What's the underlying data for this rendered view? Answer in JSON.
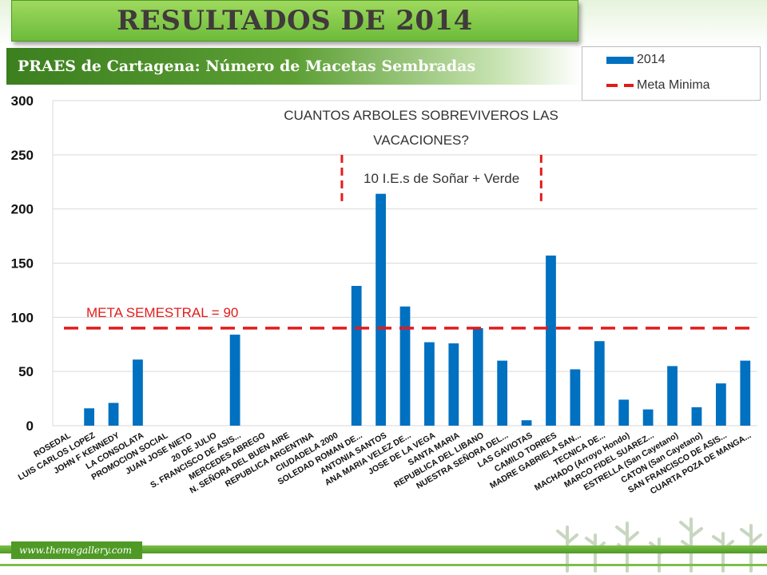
{
  "header": {
    "title": "RESULTADOS DE 2014",
    "subtitle": "PRAES de Cartagena: Número de Macetas Sembradas"
  },
  "footer": {
    "url_text": "www.themegallery.com"
  },
  "colors": {
    "bar": "#0070c0",
    "meta_line": "#e31b1b",
    "annotation_red": "#e31b1b",
    "annotation_text": "#333333",
    "brand_green": "#4e9a25"
  },
  "chart_data": {
    "type": "bar",
    "ylim": [
      0,
      300
    ],
    "yticks": [
      0,
      50,
      100,
      150,
      200,
      250,
      300
    ],
    "grid": true,
    "legend_position": "top-right",
    "categories": [
      "ROSEDAL",
      "LUIS CARLOS LOPEZ",
      "JOHN F KENNEDY",
      "LA CONSOLATA",
      "PROMOCION SOCIAL",
      "JUAN JOSE NIETO",
      "20 DE JULIO",
      "S. FRANCISCO DE ASIS...",
      "MERCEDES ABREGO",
      "N. SEÑORA DEL BUEN AIRE",
      "REPUBLICA ARGENTINA",
      "CIUDADELA 2000",
      "SOLEDAD ROMAN DE...",
      "ANTONIA SANTOS",
      "ANA MARIA VELEZ DE...",
      "JOSE DE LA VEGA",
      "SANTA MARIA",
      "REPUBLICA DEL LIBANO",
      "NUESTRA SEÑORA DEL...",
      "LAS GAVIOTAS",
      "CAMILO TORRES",
      "MADRE GABRIELA SAN...",
      "TECNICA DE...",
      "MACHADO (Arroyo Hondo)",
      "MARCO FIDEL SUAREZ...",
      "ESTRELLA (San Cayetano)",
      "CATON (San Cayetano)",
      "SAN FRANCISCO DE ASIS...",
      "CUARTA POZA DE MANGA..."
    ],
    "series": [
      {
        "name": "2014",
        "values": [
          0,
          16,
          21,
          61,
          0,
          0,
          0,
          84,
          0,
          0,
          0,
          0,
          129,
          214,
          110,
          77,
          76,
          90,
          60,
          5,
          157,
          52,
          78,
          24,
          15,
          55,
          17,
          39,
          60
        ]
      }
    ],
    "reference_line": {
      "name": "Meta Minima",
      "value": 90,
      "label": "META SEMESTRAL = 90"
    },
    "annotations": {
      "question_line1": "CUANTOS ARBOLES SOBREVIVEROS LAS",
      "question_line2": "VACACIONES?",
      "group_label": "10 I.E.s de Soñar + Verde",
      "group_start_category": "SOLEDAD ROMAN DE...",
      "group_end_category": "LAS GAVIOTAS"
    }
  }
}
